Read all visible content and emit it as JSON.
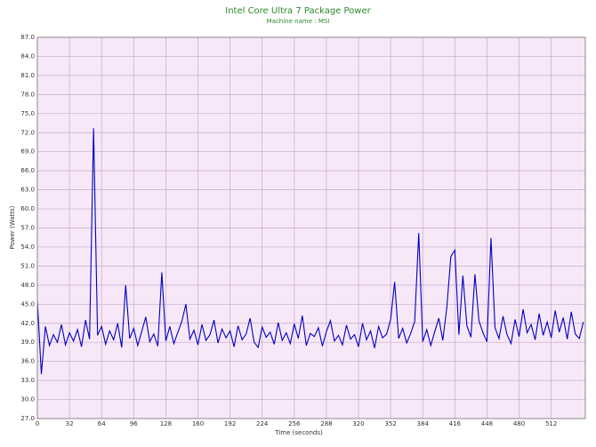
{
  "chart_data": {
    "type": "line",
    "title": "Intel Core Ultra 7 Package Power",
    "subtitle": "Machine name : MSI",
    "x_label": "Time (seconds)",
    "y_label": "Power (Watts)",
    "color": "#0000c0",
    "grid": true,
    "xlim": [
      0,
      546
    ],
    "xticks": [
      0,
      32,
      64,
      96,
      128,
      160,
      192,
      224,
      256,
      288,
      320,
      352,
      384,
      416,
      448,
      480,
      512
    ],
    "ylim": [
      27,
      87
    ],
    "yticks": [
      {
        "value": 27,
        "label": "27.0"
      },
      {
        "value": 30,
        "label": "30.0"
      },
      {
        "value": 33,
        "label": "33.0"
      },
      {
        "value": 36,
        "label": "36.0"
      },
      {
        "value": 39,
        "label": "39.0"
      },
      {
        "value": 42,
        "label": "42.0"
      },
      {
        "value": 45,
        "label": "45.0"
      },
      {
        "value": 48,
        "label": "48.0"
      },
      {
        "value": 51,
        "label": "51.0"
      },
      {
        "value": 54,
        "label": "54.0"
      },
      {
        "value": 57,
        "label": "57.0"
      },
      {
        "value": 60,
        "label": "60.0"
      },
      {
        "value": 63,
        "label": "63.0"
      },
      {
        "value": 66,
        "label": "66.0"
      },
      {
        "value": 69,
        "label": "69.0"
      },
      {
        "value": 72,
        "label": "72.0"
      },
      {
        "value": 75,
        "label": "75.0"
      },
      {
        "value": 78,
        "label": "78.0"
      },
      {
        "value": 81,
        "label": "81.0"
      },
      {
        "value": 84,
        "label": "84.0"
      },
      {
        "value": 87,
        "label": "87.0"
      }
    ],
    "x": [
      0,
      4,
      8,
      12,
      16,
      20,
      24,
      28,
      32,
      36,
      40,
      44,
      48,
      52,
      56,
      60,
      64,
      68,
      72,
      76,
      80,
      84,
      88,
      92,
      96,
      100,
      104,
      108,
      112,
      116,
      120,
      124,
      128,
      132,
      136,
      140,
      144,
      148,
      152,
      156,
      160,
      164,
      168,
      172,
      176,
      180,
      184,
      188,
      192,
      196,
      200,
      204,
      208,
      212,
      216,
      220,
      224,
      228,
      232,
      236,
      240,
      244,
      248,
      252,
      256,
      260,
      264,
      268,
      272,
      276,
      280,
      284,
      288,
      292,
      296,
      300,
      304,
      308,
      312,
      316,
      320,
      324,
      328,
      332,
      336,
      340,
      344,
      348,
      352,
      356,
      360,
      364,
      368,
      372,
      376,
      380,
      384,
      388,
      392,
      396,
      400,
      404,
      408,
      412,
      416,
      420,
      424,
      428,
      432,
      436,
      440,
      444,
      448,
      452,
      456,
      460,
      464,
      468,
      472,
      476,
      480,
      484,
      488,
      492,
      496,
      500,
      504,
      508,
      512,
      516,
      520,
      524,
      528,
      532,
      536,
      540,
      544
    ],
    "values": [
      45.5,
      34,
      41.5,
      38.5,
      40.2,
      39,
      41.8,
      38.6,
      40.5,
      39.2,
      41,
      38.3,
      42.5,
      39.5,
      72.7,
      40.1,
      41.5,
      38.7,
      40.8,
      39.4,
      42,
      38.2,
      48,
      39.6,
      41.2,
      38.5,
      40.7,
      43,
      39.1,
      40.3,
      38.4,
      50,
      39.2,
      41.5,
      38.8,
      40.6,
      42.3,
      45,
      39.5,
      40.9,
      38.6,
      41.8,
      39.3,
      40.2,
      42.5,
      38.9,
      41.1,
      39.7,
      40.8,
      38.3,
      41.6,
      39.4,
      40.3,
      42.8,
      39,
      38.2,
      41.4,
      39.8,
      40.6,
      38.7,
      42.1,
      39.3,
      40.5,
      38.8,
      41.9,
      39.6,
      43.2,
      38.5,
      40.4,
      39.9,
      41.3,
      38.4,
      40.7,
      42.4,
      39.2,
      40.1,
      38.6,
      41.7,
      39.5,
      40.2,
      38.3,
      42,
      39.4,
      40.8,
      38.1,
      41.5,
      39.7,
      40.3,
      42.6,
      48.5,
      39.6,
      41.2,
      38.9,
      40.4,
      42.3,
      56.2,
      39.1,
      41,
      38.5,
      40.7,
      42.8,
      39.3,
      44.5,
      52.5,
      53.5,
      40.2,
      49.5,
      41.6,
      39.8,
      49.7,
      42.4,
      40.5,
      39.1,
      55.4,
      41.3,
      39.6,
      43.1,
      40.2,
      38.8,
      42.6,
      39.9,
      44.2,
      40.5,
      41.8,
      39.4,
      43.5,
      40.1,
      42.2,
      39.7,
      44,
      40.6,
      42.9,
      39.5,
      43.8,
      40.3,
      39.6,
      42.2
    ]
  }
}
